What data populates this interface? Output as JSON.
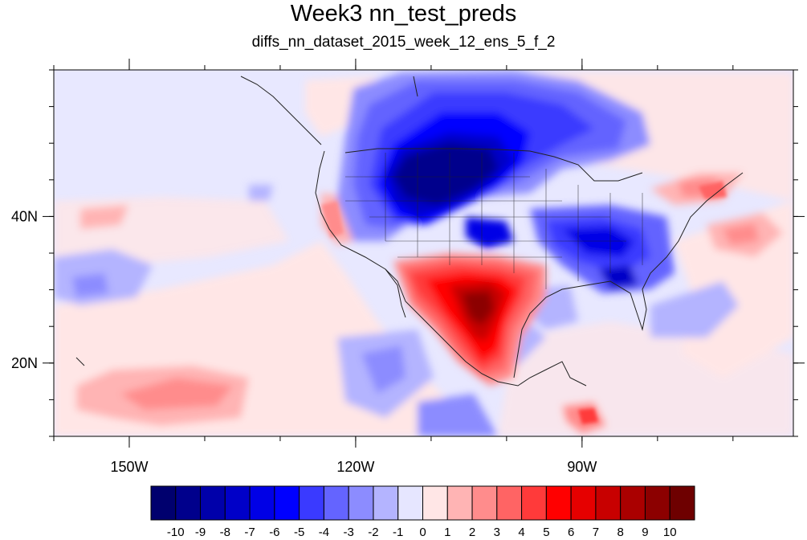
{
  "title": "Week3 nn_test_preds",
  "subtitle": "diffs_nn_dataset_2015_week_12_ens_5_f_2",
  "map": {
    "projection": "cylindrical-equidistant",
    "lon_range": [
      -160,
      -62
    ],
    "lat_range": [
      10,
      60
    ],
    "x_ticks": [
      {
        "value": -150,
        "label": "150W"
      },
      {
        "value": -120,
        "label": "120W"
      },
      {
        "value": -90,
        "label": "90W"
      }
    ],
    "y_ticks": [
      {
        "value": 20,
        "label": "20N"
      },
      {
        "value": 40,
        "label": "40N"
      }
    ]
  },
  "colorbar": {
    "labels": [
      "-10",
      "-9",
      "-8",
      "-7",
      "-6",
      "-5",
      "-4",
      "-3",
      "-2",
      "-1",
      "0",
      "1",
      "2",
      "3",
      "4",
      "5",
      "6",
      "7",
      "8",
      "9",
      "10"
    ],
    "colors": [
      "#00006e",
      "#00008c",
      "#0000aa",
      "#0000c8",
      "#0000e6",
      "#0000ff",
      "#3a3aff",
      "#6464ff",
      "#8c8cff",
      "#b4b4ff",
      "#e6e6ff",
      "#ffe6e6",
      "#ffb4b4",
      "#ff8c8c",
      "#ff6464",
      "#ff3a3a",
      "#ff0000",
      "#e60000",
      "#c80000",
      "#aa0000",
      "#8c0000",
      "#6e0000"
    ]
  }
}
